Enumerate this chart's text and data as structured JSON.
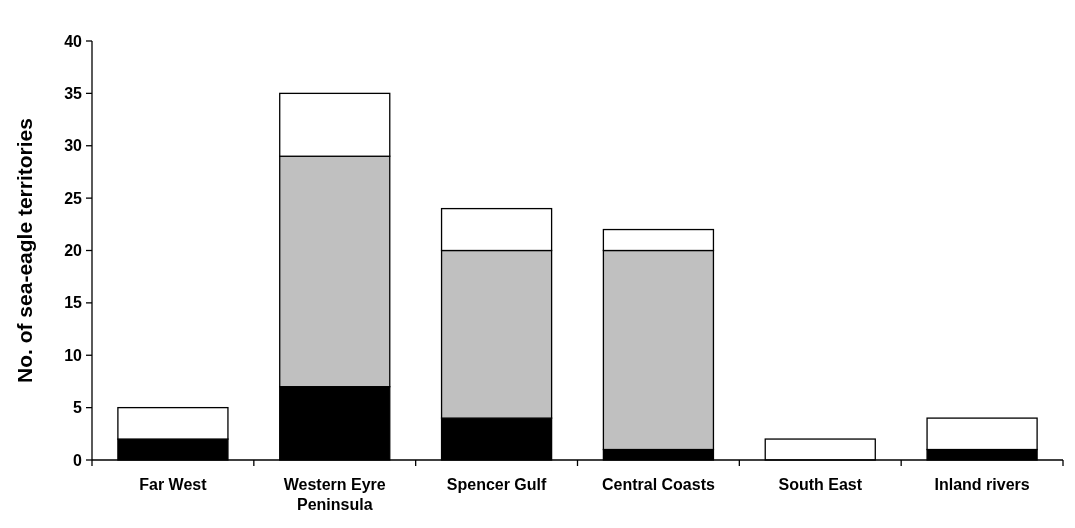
{
  "chart_data": {
    "type": "bar",
    "stacked": true,
    "ylabel": "No. of sea-eagle territories",
    "categories": [
      "Far West",
      "Western Eyre Peninsula",
      "Spencer Gulf",
      "Central Coasts",
      "South East",
      "Inland rivers"
    ],
    "ylim": [
      0,
      40
    ],
    "yticks": [
      0,
      5,
      10,
      15,
      20,
      25,
      30,
      35,
      40
    ],
    "grid": false,
    "series": [
      {
        "color": "#000000",
        "values": [
          2,
          7,
          4,
          1,
          0,
          1
        ]
      },
      {
        "color": "#c0c0c0",
        "values": [
          0,
          22,
          16,
          19,
          0,
          0
        ]
      },
      {
        "color": "#ffffff",
        "values": [
          3,
          6,
          4,
          2,
          2,
          3
        ]
      }
    ]
  }
}
